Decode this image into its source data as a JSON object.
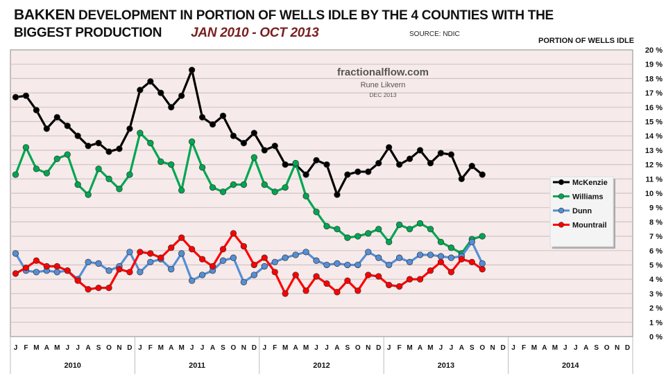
{
  "title": {
    "part1": "BAKKEN",
    "part2": " DEVELOPMENT IN PORTION OF WELLS IDLE BY THE 4  COUNTIES WITH THE",
    "line2": "BIGGEST PRODUCTION",
    "period": "JAN 2010 - OCT 2013"
  },
  "source": "SOURCE: NDIC",
  "watermark": {
    "site": "fractionalflow.com",
    "author": "Rune Likvern",
    "date": "DEC 2013"
  },
  "chart_data": {
    "type": "line",
    "title": "BAKKEN DEVELOPMENT IN PORTION OF WELLS IDLE BY THE 4 COUNTIES WITH THE BIGGEST PRODUCTION",
    "subtitle": "JAN 2010 - OCT 2013",
    "ylabel": "PORTION OF WELLS IDLE",
    "xlabel": "",
    "ylim": [
      0,
      20
    ],
    "y_ticks": [
      "0 %",
      "1 %",
      "2 %",
      "3 %",
      "4 %",
      "5 %",
      "6 %",
      "7 %",
      "8 %",
      "9 %",
      "10 %",
      "11 %",
      "12 %",
      "13 %",
      "14 %",
      "15 %",
      "16 %",
      "17 %",
      "18 %",
      "19 %",
      "20 %"
    ],
    "grid": true,
    "legend": "right",
    "month_labels": [
      "J",
      "F",
      "M",
      "A",
      "M",
      "J",
      "J",
      "A",
      "S",
      "O",
      "N",
      "D"
    ],
    "years": [
      "2010",
      "2011",
      "2012",
      "2013",
      "2014"
    ],
    "x_start": "2010-01",
    "x_count": 60,
    "series": [
      {
        "name": "McKenzie",
        "color": "#000000",
        "values": [
          16.7,
          16.8,
          15.8,
          14.5,
          15.3,
          14.7,
          14.0,
          13.3,
          13.5,
          12.9,
          13.1,
          14.5,
          17.2,
          17.8,
          17.0,
          16.0,
          16.8,
          18.6,
          15.3,
          14.8,
          15.4,
          14.0,
          13.5,
          14.2,
          13.0,
          13.3,
          12.0,
          12.0,
          11.3,
          12.3,
          12.0,
          9.9,
          11.3,
          11.5,
          11.5,
          12.1,
          13.2,
          12.0,
          12.4,
          13.0,
          12.1,
          12.8,
          12.7,
          11.0,
          11.9,
          11.3
        ]
      },
      {
        "name": "Williams",
        "color": "#00a651",
        "values": [
          11.3,
          13.2,
          11.7,
          11.4,
          12.4,
          12.7,
          10.6,
          9.9,
          11.7,
          11.0,
          10.3,
          11.3,
          14.2,
          13.5,
          12.2,
          12.0,
          10.2,
          13.6,
          11.8,
          10.4,
          10.1,
          10.6,
          10.6,
          12.5,
          10.6,
          10.1,
          10.4,
          12.1,
          9.8,
          8.7,
          7.7,
          7.5,
          6.9,
          7.0,
          7.2,
          7.5,
          6.6,
          7.8,
          7.5,
          7.9,
          7.5,
          6.6,
          6.2,
          5.8,
          6.8,
          7.0
        ]
      },
      {
        "name": "Dunn",
        "color": "#558ed5",
        "values": [
          5.8,
          4.6,
          4.5,
          4.6,
          4.5,
          4.6,
          4.0,
          5.2,
          5.1,
          4.6,
          4.9,
          5.9,
          4.5,
          5.2,
          5.4,
          4.7,
          5.8,
          3.9,
          4.3,
          4.6,
          5.3,
          5.5,
          3.8,
          4.3,
          4.9,
          5.2,
          5.5,
          5.7,
          5.9,
          5.3,
          5.0,
          5.1,
          5.0,
          5.0,
          5.9,
          5.5,
          5.0,
          5.5,
          5.2,
          5.7,
          5.7,
          5.6,
          5.5,
          5.6,
          6.6,
          5.1
        ]
      },
      {
        "name": "Mountrail",
        "color": "#ff0000",
        "values": [
          4.4,
          4.8,
          5.3,
          4.9,
          4.9,
          4.6,
          3.9,
          3.3,
          3.4,
          3.4,
          4.7,
          4.5,
          5.9,
          5.8,
          5.5,
          6.2,
          6.9,
          6.1,
          5.4,
          4.9,
          6.1,
          7.2,
          6.3,
          5.0,
          5.5,
          4.5,
          3.0,
          4.3,
          3.2,
          4.2,
          3.7,
          3.1,
          3.9,
          3.2,
          4.3,
          4.2,
          3.6,
          3.5,
          4.0,
          4.0,
          4.6,
          5.2,
          4.5,
          5.4,
          5.2,
          4.7
        ]
      }
    ]
  }
}
